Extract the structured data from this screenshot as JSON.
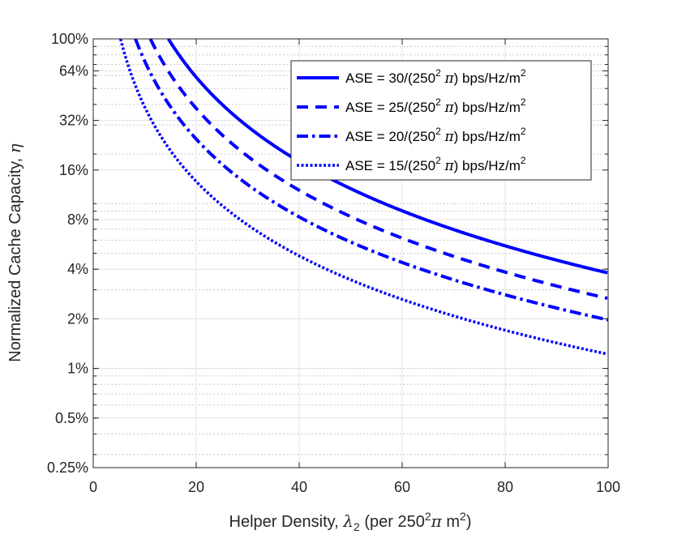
{
  "chart_data": {
    "type": "line",
    "xlabel": {
      "prefix": "Helper Density, ",
      "symbol": "λ",
      "sub": "2",
      "mid": " (per 250",
      "sup": "2",
      "greek": "π",
      "tail": " m",
      "sup2": "2",
      "close": ")"
    },
    "ylabel": {
      "text": "Normalized Cache Capacity, ",
      "greek": "η"
    },
    "xlim": [
      0,
      100
    ],
    "ylim": [
      0.0025,
      1.0
    ],
    "yscale": "log2",
    "xticks": [
      0,
      20,
      40,
      60,
      80,
      100
    ],
    "xtick_labels": [
      "0",
      "20",
      "40",
      "60",
      "80",
      "100"
    ],
    "yticks": [
      0.0025,
      0.005,
      0.01,
      0.02,
      0.04,
      0.08,
      0.16,
      0.32,
      0.64,
      1.0
    ],
    "ytick_labels": [
      "0.25%",
      "0.5%",
      "1%",
      "2%",
      "4%",
      "8%",
      "16%",
      "32%",
      "64%",
      "100%"
    ],
    "grid": true,
    "legend_position": "top-right",
    "color": "#0000ff",
    "series": [
      {
        "name": "ASE = 30/(250",
        "sup": "2",
        "greek": "π",
        "unit": ") bps/Hz/m",
        "sup2": "2",
        "style": "solid",
        "x0": 14.6,
        "k": 14.6,
        "alpha": 1.7
      },
      {
        "name": "ASE = 25/(250",
        "sup": "2",
        "greek": "π",
        "unit": ") bps/Hz/m",
        "sup2": "2",
        "style": "dashed",
        "x0": 11.1,
        "k": 11.1,
        "alpha": 1.65
      },
      {
        "name": "ASE = 20/(250",
        "sup": "2",
        "greek": "π",
        "unit": ") bps/Hz/m",
        "sup2": "2",
        "style": "dashdot",
        "x0": 8.2,
        "k": 8.2,
        "alpha": 1.57
      },
      {
        "name": "ASE = 15/(250",
        "sup": "2",
        "greek": "π",
        "unit": ") bps/Hz/m",
        "sup2": "2",
        "style": "dotted",
        "x0": 5.3,
        "k": 5.3,
        "alpha": 1.5
      }
    ]
  }
}
